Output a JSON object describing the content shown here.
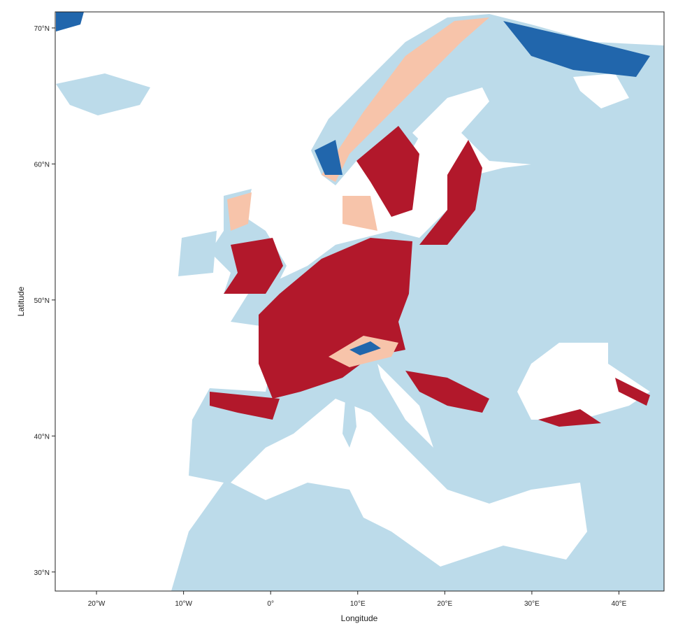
{
  "chart_data": {
    "type": "map",
    "x_label": "Longitude",
    "y_label": "Latitude",
    "xlim": [
      -24.74,
      45.18
    ],
    "ylim": [
      28.6,
      71.18
    ],
    "xticks": [
      {
        "value": -20,
        "label": "20°W"
      },
      {
        "value": -10,
        "label": "10°W"
      },
      {
        "value": 0,
        "label": "0°"
      },
      {
        "value": 10,
        "label": "10°E"
      },
      {
        "value": 20,
        "label": "20°E"
      },
      {
        "value": 30,
        "label": "30°E"
      },
      {
        "value": 40,
        "label": "40°E"
      }
    ],
    "yticks": [
      {
        "value": 30,
        "label": "30°N"
      },
      {
        "value": 40,
        "label": "40°N"
      },
      {
        "value": 50,
        "label": "50°N"
      },
      {
        "value": 60,
        "label": "60°N"
      },
      {
        "value": 70,
        "label": "70°N"
      }
    ]
  }
}
